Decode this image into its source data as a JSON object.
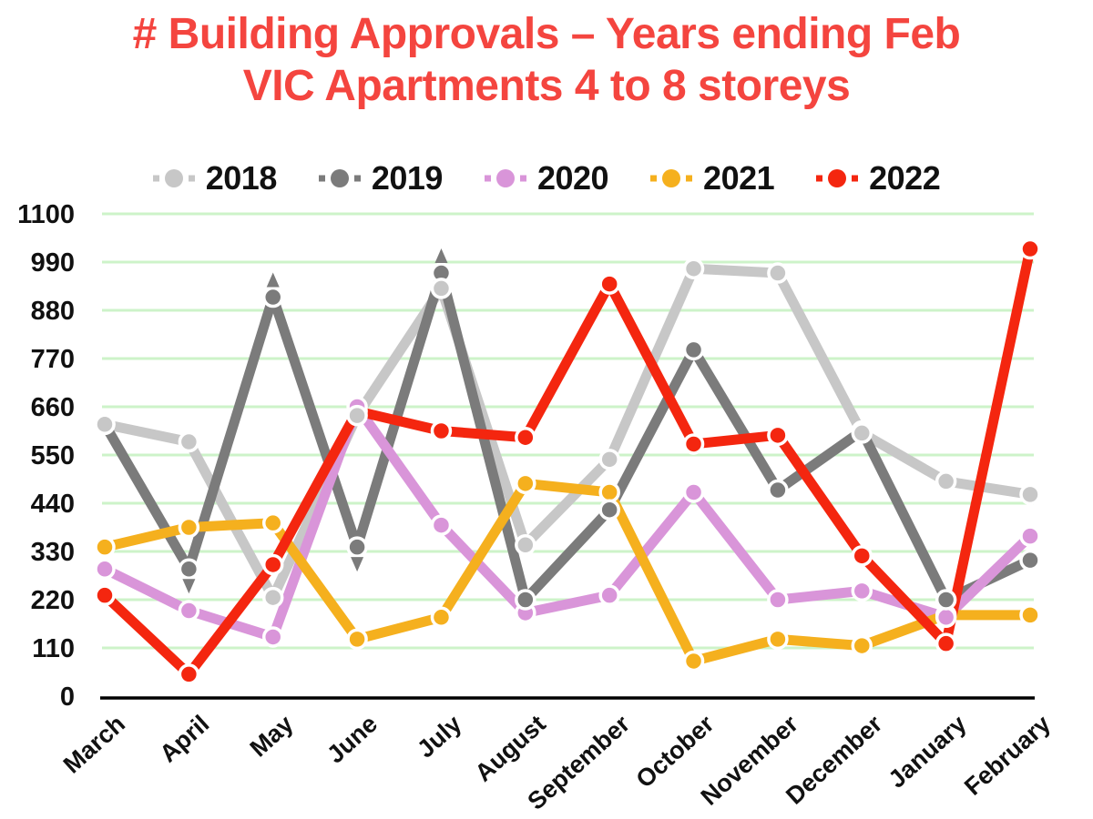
{
  "title": {
    "line1": "# Building Approvals – Years ending Feb",
    "line2": "VIC Apartments 4 to 8 storeys",
    "color": "#f4453f"
  },
  "legend": {
    "marker_shape": "square-dot-square"
  },
  "chart_data": {
    "type": "line",
    "title": "# Building Approvals – Years ending Feb VIC Apartments 4 to 8 storeys",
    "xlabel": "",
    "ylabel": "",
    "categories": [
      "March",
      "April",
      "May",
      "June",
      "July",
      "August",
      "September",
      "October",
      "November",
      "December",
      "January",
      "February"
    ],
    "yticks": [
      0,
      110,
      220,
      330,
      440,
      550,
      660,
      770,
      880,
      990,
      1100
    ],
    "ylim": [
      0,
      1100
    ],
    "grid": true,
    "legend_position": "top",
    "series": [
      {
        "name": "2018",
        "color": "#c7c7c7",
        "values": [
          620,
          580,
          225,
          640,
          930,
          345,
          540,
          975,
          965,
          600,
          490,
          460
        ]
      },
      {
        "name": "2019",
        "color": "#7b7b7b",
        "values": [
          620,
          290,
          910,
          340,
          965,
          220,
          425,
          790,
          470,
          605,
          220,
          310
        ]
      },
      {
        "name": "2020",
        "color": "#d995d9",
        "values": [
          290,
          195,
          135,
          660,
          390,
          190,
          230,
          465,
          220,
          240,
          180,
          365
        ]
      },
      {
        "name": "2021",
        "color": "#f5b01e",
        "values": [
          340,
          385,
          395,
          130,
          180,
          485,
          465,
          80,
          130,
          115,
          185,
          185
        ]
      },
      {
        "name": "2022",
        "color": "#f4260f",
        "values": [
          230,
          50,
          300,
          650,
          605,
          590,
          940,
          575,
          595,
          320,
          120,
          1020
        ]
      }
    ],
    "annotations": [
      {
        "series": "2019",
        "category": "April",
        "arrow": "down"
      },
      {
        "series": "2019",
        "category": "May",
        "arrow": "up"
      },
      {
        "series": "2019",
        "category": "June",
        "arrow": "down"
      },
      {
        "series": "2019",
        "category": "July",
        "arrow": "up"
      }
    ],
    "gridline_color": "#cdf3c9",
    "axis_line_color": "#000000",
    "text_color": "#111111"
  }
}
